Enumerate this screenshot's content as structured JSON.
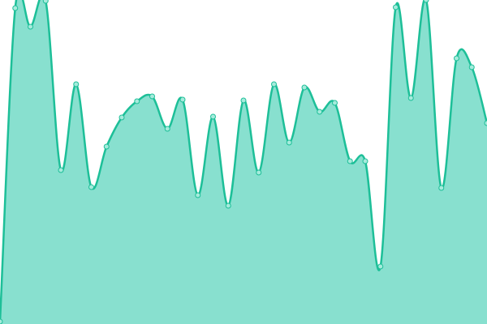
{
  "chart_data": {
    "type": "area",
    "title": "",
    "xlabel": "",
    "ylabel": "",
    "x": [
      0,
      1,
      2,
      3,
      4,
      5,
      6,
      7,
      8,
      9,
      10,
      11,
      12,
      13,
      14,
      15,
      16,
      17,
      18,
      19,
      20,
      21,
      22,
      23,
      24,
      25,
      26,
      27,
      28,
      29,
      30,
      31,
      32
    ],
    "values": [
      3,
      390,
      367,
      399,
      190,
      296,
      169,
      219,
      255,
      275,
      281,
      241,
      277,
      159,
      256,
      146,
      276,
      187,
      296,
      224,
      292,
      262,
      273,
      201,
      201,
      71,
      391,
      279,
      400,
      168,
      328,
      317,
      248
    ],
    "ylim": [
      0,
      400
    ],
    "xlim": [
      0,
      32
    ],
    "grid": false,
    "axes_visible": false,
    "smooth": true,
    "markers": true,
    "colors": {
      "fill": "#88e0cf",
      "line": "#1dbf98",
      "marker_fill": "#a6ebdc",
      "marker_stroke": "#1dbf98"
    }
  }
}
